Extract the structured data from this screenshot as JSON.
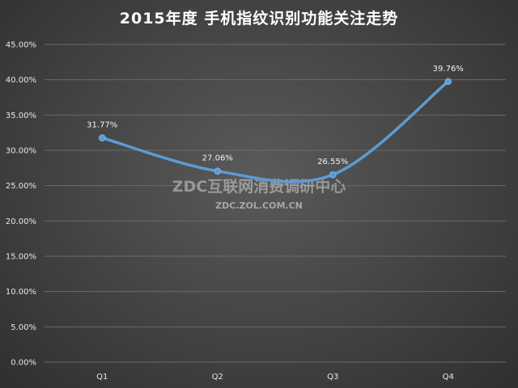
{
  "chart_data": {
    "type": "line",
    "title": "2015年度 手机指纹识别功能关注走势",
    "categories": [
      "Q1",
      "Q2",
      "Q3",
      "Q4"
    ],
    "series": [
      {
        "values": [
          31.77,
          27.06,
          26.55,
          39.76
        ],
        "labels": [
          "31.77%",
          "27.06%",
          "26.55%",
          "39.76%"
        ]
      }
    ],
    "y_ticks": [
      "0.00%",
      "5.00%",
      "10.00%",
      "15.00%",
      "20.00%",
      "25.00%",
      "30.00%",
      "35.00%",
      "40.00%",
      "45.00%"
    ],
    "ylim": [
      0,
      45
    ],
    "grid": true,
    "legend": "none",
    "colors": {
      "line": "#5b9bd5",
      "marker": "#5b9bd5",
      "grid": "#6a6a6a"
    }
  },
  "watermark": {
    "line1": "ZDC互联网消费调研中心",
    "line2": "ZDC.ZOL.COM.CN"
  }
}
